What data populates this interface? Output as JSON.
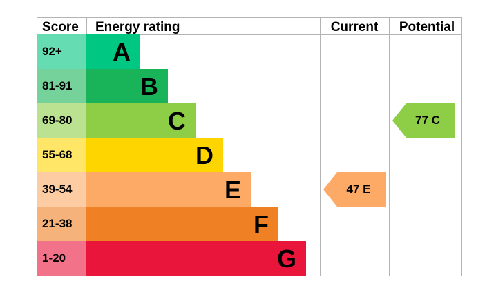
{
  "headers": {
    "score": "Score",
    "energy_rating": "Energy rating",
    "current": "Current",
    "potential": "Potential"
  },
  "chart_data": {
    "type": "bar",
    "bands": [
      {
        "score": "92+",
        "letter": "A",
        "color": "#00c781",
        "score_color": "#66dcb3"
      },
      {
        "score": "81-91",
        "letter": "B",
        "color": "#19b459",
        "score_color": "#75d29b"
      },
      {
        "score": "69-80",
        "letter": "C",
        "color": "#8dce46",
        "score_color": "#bbe290"
      },
      {
        "score": "55-68",
        "letter": "D",
        "color": "#ffd500",
        "score_color": "#ffe666"
      },
      {
        "score": "39-54",
        "letter": "E",
        "color": "#fcaa65",
        "score_color": "#fdcca3"
      },
      {
        "score": "21-38",
        "letter": "F",
        "color": "#ef8023",
        "score_color": "#f5b37b"
      },
      {
        "score": "1-20",
        "letter": "G",
        "color": "#e9153b",
        "score_color": "#f27389"
      }
    ],
    "current": {
      "value": 47,
      "letter": "E",
      "label": "47 E",
      "color": "#fcaa65"
    },
    "potential": {
      "value": 77,
      "letter": "C",
      "label": "77 C",
      "color": "#8dce46"
    }
  }
}
